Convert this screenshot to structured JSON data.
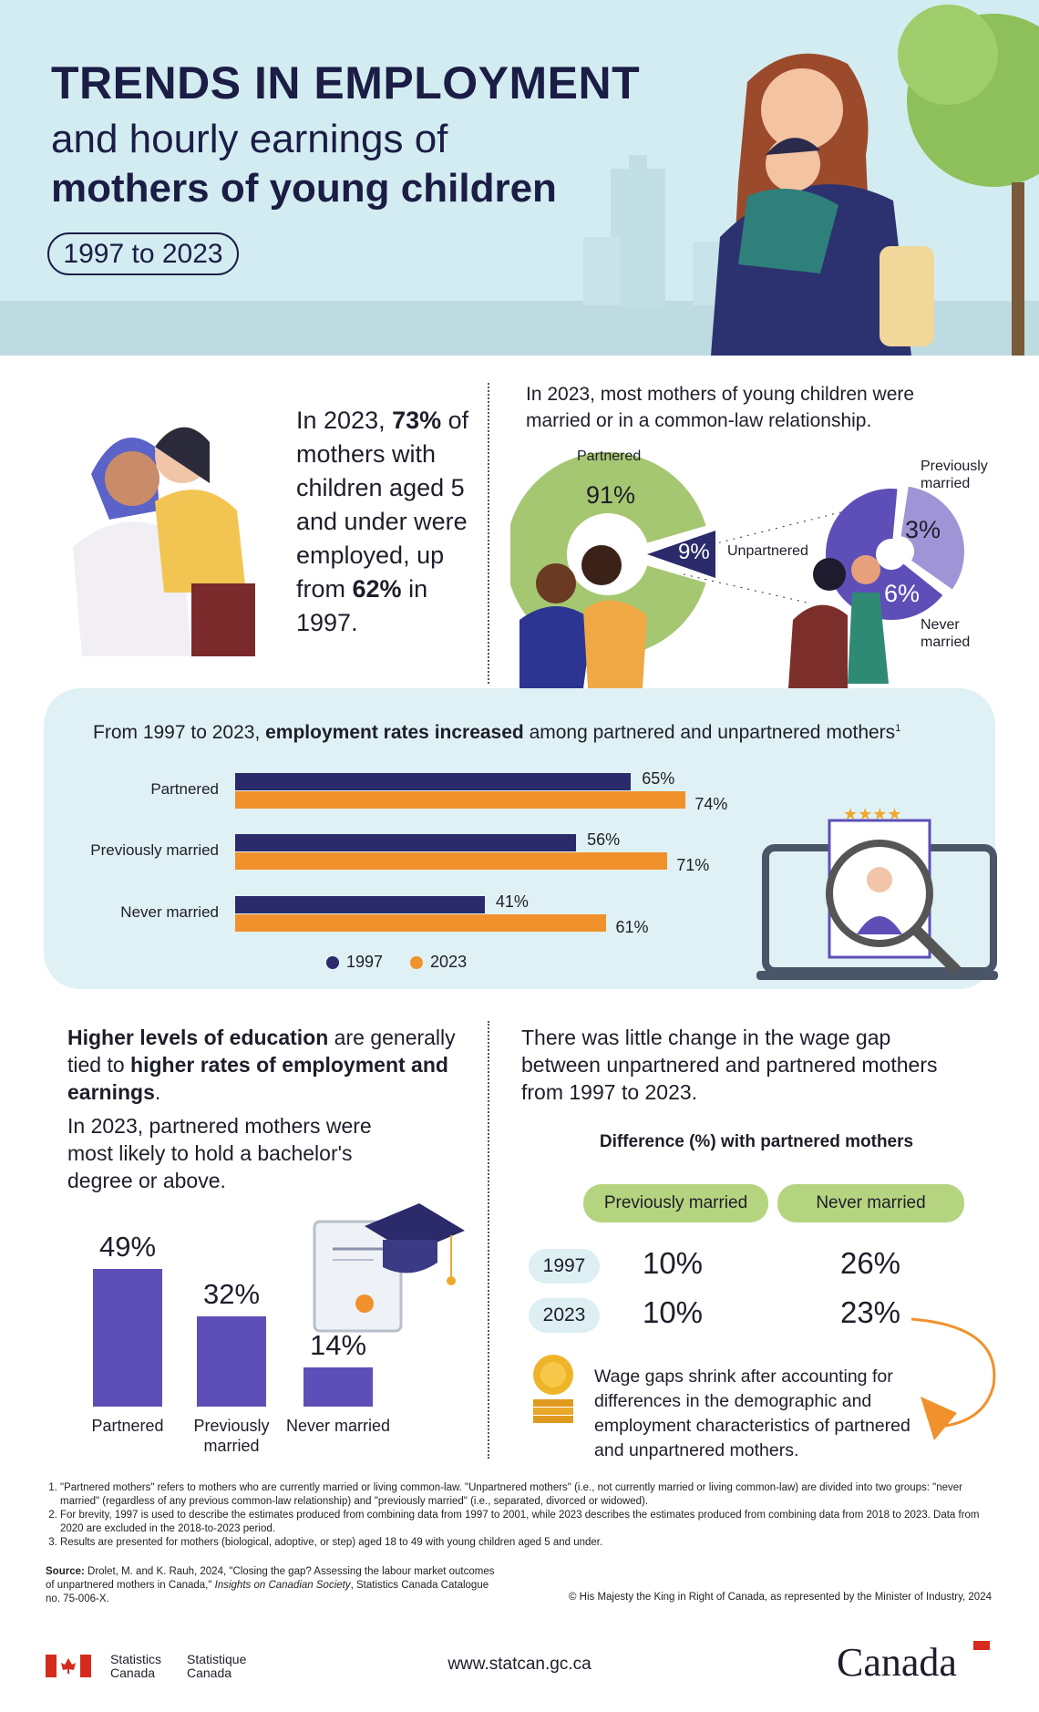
{
  "header": {
    "title_line1": "TRENDS IN EMPLOYMENT",
    "title_line2": "and hourly earnings of",
    "title_line3": "mothers of young children",
    "period": "1997 to 2023"
  },
  "intro": {
    "pre": "In 2023, ",
    "pct": "73%",
    "mid": " of mothers with children aged 5 and under were employed, up from ",
    "pct2": "62%",
    "post": " in 1997."
  },
  "marital": {
    "heading": "In 2023, most mothers of young children were married or in a common-law relationship.",
    "partnered_label": "Partnered",
    "partnered_value": "91%",
    "unpartnered_label": "Unpartnered",
    "unpartnered_value": "9%",
    "prev_label": "Previously married",
    "prev_value": "3%",
    "never_label": "Never married",
    "never_value": "6%"
  },
  "chart_data": [
    {
      "type": "pie",
      "title": "",
      "categories": [
        "Partnered",
        "Unpartnered"
      ],
      "values": [
        91,
        9
      ]
    },
    {
      "type": "pie",
      "title": "",
      "categories": [
        "Previously married",
        "Never married"
      ],
      "values": [
        3,
        6
      ]
    },
    {
      "type": "bar",
      "orientation": "horizontal",
      "title": "From 1997 to 2023, employment rates increased among partnered and unpartnered mothers¹",
      "categories": [
        "Partnered",
        "Previously married",
        "Never married"
      ],
      "series": [
        {
          "name": "1997",
          "values": [
            65,
            56,
            41
          ],
          "color": "#2b2a6b"
        },
        {
          "name": "2023",
          "values": [
            74,
            71,
            61
          ],
          "color": "#f0912b"
        }
      ],
      "legend": "bottom"
    },
    {
      "type": "bar",
      "title": "",
      "categories": [
        "Partnered",
        "Previously married",
        "Never married"
      ],
      "values": [
        49,
        32,
        14
      ],
      "color": "#5e4fb8"
    },
    {
      "type": "table",
      "title": "Difference (%) with partnered mothers",
      "columns": [
        "Previously married",
        "Never married"
      ],
      "rows": [
        {
          "year": "1997",
          "values": [
            "10%",
            "26%"
          ]
        },
        {
          "year": "2023",
          "values": [
            "10%",
            "23%"
          ]
        }
      ]
    }
  ],
  "employment": {
    "title_pre": "From 1997 to 2023, ",
    "title_bold": "employment rates increased",
    "title_post": " among partnered and unpartnered mothers",
    "title_sup": "1",
    "rows": [
      {
        "label": "Partnered",
        "v1997": "65%",
        "v2023": "74%"
      },
      {
        "label": "Previously married",
        "v1997": "56%",
        "v2023": "71%"
      },
      {
        "label": "Never married",
        "v1997": "41%",
        "v2023": "61%"
      }
    ],
    "legend": [
      "1997",
      "2023"
    ]
  },
  "education": {
    "b1": "Higher levels of education",
    "t1": " are generally tied to ",
    "b2": "higher rates of employment and earnings",
    "t2": ".",
    "sub": "In 2023, partnered mothers were most likely to hold a bachelor's degree or above.",
    "bars": [
      {
        "label": "Partnered",
        "value": "49%"
      },
      {
        "label": "Previously married",
        "value": "32%"
      },
      {
        "label": "Never married",
        "value": "14%"
      }
    ]
  },
  "wage": {
    "heading": "There was little change in the wage gap between unpartnered and partnered mothers from 1997 to 2023.",
    "table_title": "Difference (%) with partnered mothers",
    "col1": "Previously married",
    "col2": "Never married",
    "rows": [
      {
        "year": "1997",
        "prev": "10%",
        "never": "26%"
      },
      {
        "year": "2023",
        "prev": "10%",
        "never": "23%"
      }
    ],
    "note": "Wage gaps shrink after accounting for differences in the demographic and employment characteristics of partnered and unpartnered mothers."
  },
  "footnotes": [
    "\"Partnered mothers\" refers to mothers who are currently married or living common-law. \"Unpartnered mothers\" (i.e., not currently married or living common-law) are divided into two groups: \"never married\" (regardless of any previous common-law relationship) and \"previously married\" (i.e., separated, divorced or widowed).",
    "For brevity, 1997 is used to describe the estimates produced from combining data from 1997 to 2001, while 2023 describes the estimates produced from combining data from 2018 to 2023. Data from 2020 are excluded in the 2018-to-2023 period.",
    "Results are presented for mothers (biological, adoptive, or step) aged 18 to 49 with young children aged 5 and under."
  ],
  "source": {
    "label": "Source:",
    "text": " Drolet, M. and K. Rauh, 2024, \"Closing the gap? Assessing the labour market outcomes of unpartnered mothers in Canada,\" ",
    "italic": "Insights on Canadian Society",
    "tail": ", Statistics Canada Catalogue no. 75-006-X."
  },
  "copyright": "© His Majesty the King in Right of Canada, as represented by the Minister of Industry, 2024",
  "footer": {
    "en": "Statistics Canada",
    "fr": "Statistique Canada",
    "url": "www.statcan.gc.ca",
    "wordmark": "Canada"
  },
  "colors": {
    "navy": "#2b2a6b",
    "orange": "#f0912b",
    "purple": "#5e4fb8",
    "light_purple": "#9f95d6",
    "green": "#a6c771",
    "hero_bg": "#d3ecf1"
  }
}
